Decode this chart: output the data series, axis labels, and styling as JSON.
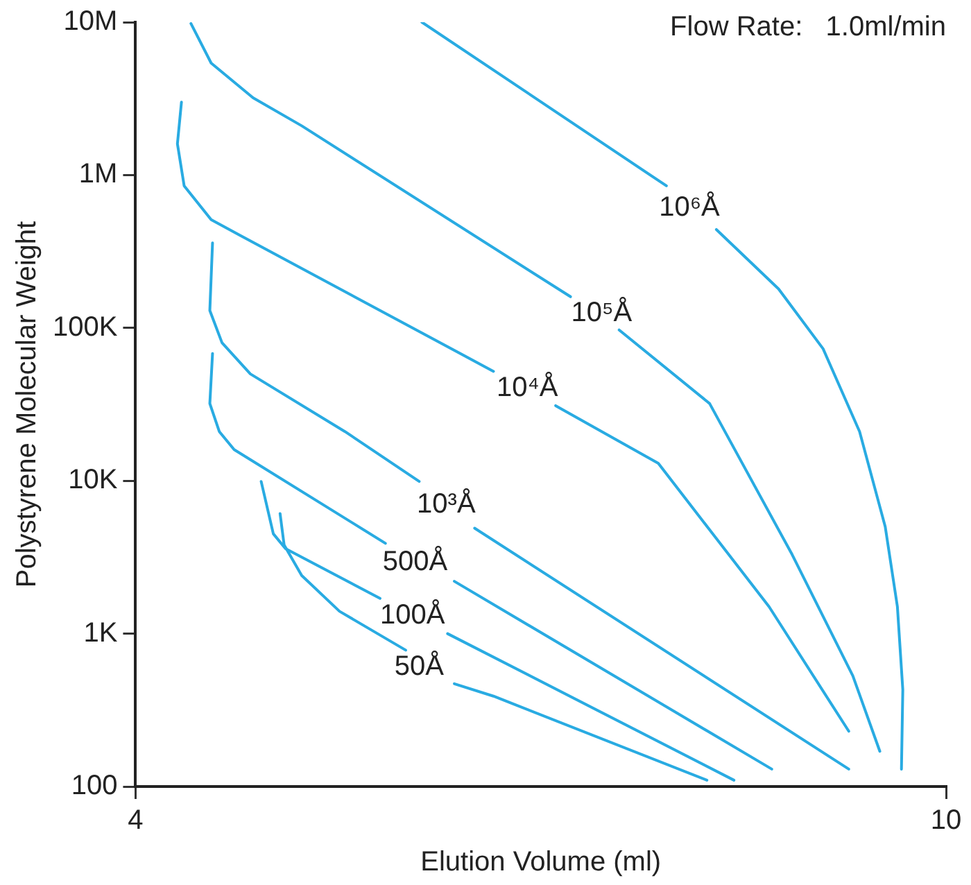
{
  "chart_data": {
    "type": "line",
    "xlabel": "Elution Volume (ml)",
    "ylabel": "Polystyrene Molecular Weight",
    "annotations": [
      "Flow Rate:   1.0ml/min"
    ],
    "xlim": [
      4,
      10
    ],
    "xticks": [
      4,
      10
    ],
    "ylim": [
      100,
      10000000
    ],
    "yticks": [
      100,
      {
        "value": 1000,
        "label": "1K"
      },
      {
        "value": 10000,
        "label": "10K"
      },
      {
        "value": 100000,
        "label": "100K"
      },
      {
        "value": 1000000,
        "label": "1M"
      },
      {
        "value": 10000000,
        "label": "10M"
      }
    ],
    "log": "y",
    "grid": false,
    "legend": false,
    "marker": "none",
    "line_style": "solid",
    "series": [
      {
        "name": "10⁶Å",
        "color": "#29abe2",
        "x": [
          6.12,
          7.93,
          8.1,
          8.3,
          8.76,
          9.09,
          9.36,
          9.55,
          9.64,
          9.68,
          9.67
        ],
        "values": [
          10000000,
          850000,
          null,
          440000,
          180000,
          73000,
          21000,
          5000,
          1500,
          430,
          130
        ]
      },
      {
        "name": "10⁵Å",
        "color": "#29abe2",
        "x": [
          4.41,
          4.56,
          4.87,
          5.23,
          7.22,
          7.45,
          7.58,
          8.25,
          8.86,
          9.31,
          9.51
        ],
        "values": [
          9800000,
          5400000,
          3200000,
          2100000,
          160000,
          null,
          97000,
          32000,
          3300,
          530,
          170
        ]
      },
      {
        "name": "10⁴Å",
        "color": "#29abe2",
        "x": [
          4.34,
          4.31,
          4.36,
          4.56,
          4.78,
          6.65,
          6.9,
          7.11,
          7.87,
          8.69,
          9.28
        ],
        "values": [
          3000000,
          1600000,
          850000,
          510000,
          400000,
          52000,
          null,
          31000,
          13000,
          1500,
          230
        ]
      },
      {
        "name": "10³Å",
        "color": "#29abe2",
        "x": [
          4.57,
          4.55,
          4.64,
          4.85,
          5.55,
          6.1,
          6.3,
          6.51,
          9.28
        ],
        "values": [
          360000,
          130000,
          80000,
          50000,
          21000,
          9900,
          null,
          4900,
          130
        ]
      },
      {
        "name": "500Å",
        "color": "#29abe2",
        "x": [
          4.57,
          4.55,
          4.62,
          4.73,
          5.85,
          6.07,
          6.36,
          8.71
        ],
        "values": [
          68000,
          32000,
          21000,
          16000,
          3900,
          null,
          2200,
          130
        ]
      },
      {
        "name": "100Å",
        "color": "#29abe2",
        "x": [
          4.93,
          5.02,
          5.11,
          5.81,
          6.05,
          6.31,
          8.43
        ],
        "values": [
          9900,
          4500,
          3600,
          1700,
          null,
          1000,
          110
        ]
      },
      {
        "name": "50Å",
        "color": "#29abe2",
        "x": [
          5.07,
          5.1,
          5.23,
          5.51,
          6.0,
          6.1,
          6.36,
          6.65,
          8.23
        ],
        "values": [
          6100,
          3800,
          2400,
          1400,
          780,
          null,
          470,
          390,
          110
        ]
      }
    ]
  }
}
